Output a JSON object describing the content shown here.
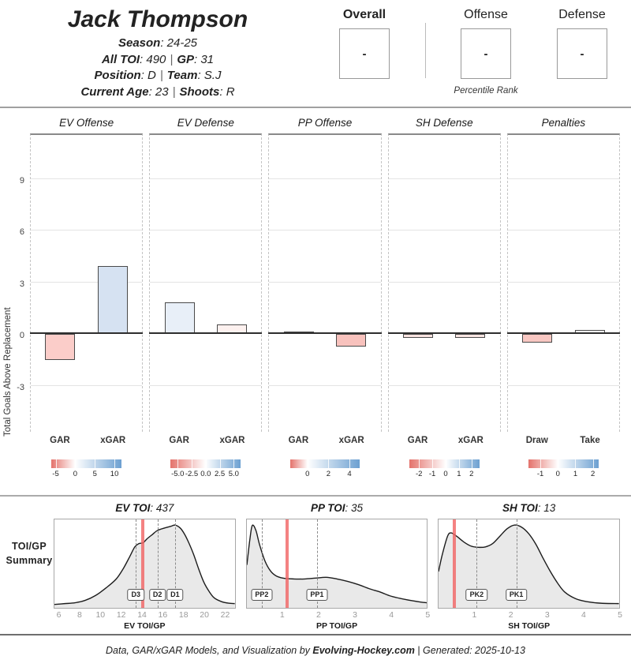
{
  "header": {
    "name": "Jack Thompson",
    "separator": "|",
    "season_label": "Season",
    "season_value": ": 24-25",
    "toi_label": "All TOI",
    "toi_value": ": 490",
    "gp_label": "GP",
    "gp_value": ": 31",
    "position_label": "Position",
    "position_value": ": D",
    "team_label": "Team",
    "team_value": ": S.J",
    "age_label": "Current Age",
    "age_value": ": 23",
    "shoots_label": "Shoots",
    "shoots_value": ": R"
  },
  "percentiles": {
    "overall": {
      "label": "Overall",
      "value": "-"
    },
    "offense": {
      "label": "Offense",
      "value": "-"
    },
    "defense": {
      "label": "Defense",
      "value": "-"
    },
    "caption": "Percentile Rank"
  },
  "chart_data": {
    "type": "bar",
    "ylabel": "Total Goals Above Replacement",
    "yticks": [
      9,
      6,
      3,
      0,
      -3
    ],
    "ylim": [
      -5.8,
      11.5
    ],
    "grid": "horizontal",
    "gradient": {
      "negative": "#e4736c",
      "positive": "#6ca0d1"
    },
    "panels": [
      {
        "title": "EV Offense",
        "categories": [
          "GAR",
          "xGAR"
        ],
        "values": [
          -1.5,
          3.9
        ],
        "bar_colors": [
          "#fbcdc9",
          "#d6e2f2"
        ],
        "scale": {
          "white_pos": 34,
          "ticks": [
            {
              "label": "-5",
              "pos": 6
            },
            {
              "label": "0",
              "pos": 34
            },
            {
              "label": "5",
              "pos": 62
            },
            {
              "label": "10",
              "pos": 90
            }
          ]
        }
      },
      {
        "title": "EV Defense",
        "categories": [
          "GAR",
          "xGAR"
        ],
        "values": [
          1.8,
          0.5
        ],
        "bar_colors": [
          "#e8eff8",
          "#fdf1ef"
        ],
        "scale": {
          "white_pos": 50,
          "ticks": [
            {
              "label": "-5.0",
              "pos": 10
            },
            {
              "label": "-2.5",
              "pos": 30
            },
            {
              "label": "0.0",
              "pos": 50
            },
            {
              "label": "2.5",
              "pos": 70
            },
            {
              "label": "5.0",
              "pos": 90
            }
          ]
        }
      },
      {
        "title": "PP Offense",
        "categories": [
          "GAR",
          "xGAR"
        ],
        "values": [
          0.1,
          -0.7
        ],
        "bar_colors": [
          "#fdfdfe",
          "#f8c2bd"
        ],
        "scale": {
          "white_pos": 25,
          "ticks": [
            {
              "label": "0",
              "pos": 25
            },
            {
              "label": "2",
              "pos": 55
            },
            {
              "label": "4",
              "pos": 85
            }
          ]
        }
      },
      {
        "title": "SH Defense",
        "categories": [
          "GAR",
          "xGAR"
        ],
        "values": [
          -0.2,
          -0.2
        ],
        "bar_colors": [
          "#fae3e0",
          "#fae5e2"
        ],
        "scale": {
          "white_pos": 52,
          "ticks": [
            {
              "label": "-2",
              "pos": 14
            },
            {
              "label": "-1",
              "pos": 33
            },
            {
              "label": "0",
              "pos": 52
            },
            {
              "label": "1",
              "pos": 71
            },
            {
              "label": "2",
              "pos": 89
            }
          ]
        }
      },
      {
        "title": "Penalties",
        "categories": [
          "Draw",
          "Take"
        ],
        "values": [
          -0.5,
          0.2
        ],
        "bar_colors": [
          "#f8c7c2",
          "#ffffff"
        ],
        "scale": {
          "white_pos": 42,
          "ticks": [
            {
              "label": "-1",
              "pos": 17
            },
            {
              "label": "0",
              "pos": 42
            },
            {
              "label": "1",
              "pos": 67
            },
            {
              "label": "2",
              "pos": 92
            }
          ]
        }
      }
    ]
  },
  "toi_summary": {
    "panel_label_line1": "TOI/GP",
    "panel_label_line2": "Summary",
    "player_line_color": "rgba(241,103,103,0.82)",
    "plots": [
      {
        "title_label": "EV TOI",
        "title_value": ": 437",
        "xlabel": "EV TOI/GP",
        "xdomain": [
          5.5,
          23
        ],
        "xticks": [
          6,
          8,
          10,
          12,
          14,
          16,
          18,
          20,
          22
        ],
        "player_value": 14.1,
        "markers": [
          {
            "label": "D3",
            "x": 13.4
          },
          {
            "label": "D2",
            "x": 15.5
          },
          {
            "label": "D1",
            "x": 17.2
          }
        ],
        "curve": [
          [
            5.5,
            0.02
          ],
          [
            6.5,
            0.03
          ],
          [
            7.5,
            0.04
          ],
          [
            8.5,
            0.07
          ],
          [
            9.5,
            0.13
          ],
          [
            10.5,
            0.22
          ],
          [
            11.5,
            0.33
          ],
          [
            12.2,
            0.46
          ],
          [
            12.8,
            0.6
          ],
          [
            13.3,
            0.72
          ],
          [
            13.7,
            0.76
          ],
          [
            14.1,
            0.77
          ],
          [
            14.5,
            0.82
          ],
          [
            15,
            0.87
          ],
          [
            15.5,
            0.92
          ],
          [
            16.2,
            0.95
          ],
          [
            16.8,
            0.97
          ],
          [
            17.2,
            0.985
          ],
          [
            17.7,
            0.95
          ],
          [
            18.1,
            0.88
          ],
          [
            18.5,
            0.78
          ],
          [
            19,
            0.63
          ],
          [
            19.5,
            0.45
          ],
          [
            20,
            0.29
          ],
          [
            20.5,
            0.18
          ],
          [
            21,
            0.1
          ],
          [
            21.7,
            0.055
          ],
          [
            22.4,
            0.035
          ],
          [
            23,
            0.03
          ]
        ]
      },
      {
        "title_label": "PP TOI",
        "title_value": ": 35",
        "xlabel": "PP TOI/GP",
        "xdomain": [
          0,
          5
        ],
        "xticks": [
          1,
          2,
          3,
          4,
          5
        ],
        "player_value": 1.13,
        "markers": [
          {
            "label": "PP2",
            "x": 0.42
          },
          {
            "label": "PP1",
            "x": 1.95
          }
        ],
        "curve": [
          [
            0,
            0.5
          ],
          [
            0.08,
            0.8
          ],
          [
            0.15,
            0.98
          ],
          [
            0.25,
            0.92
          ],
          [
            0.35,
            0.75
          ],
          [
            0.5,
            0.55
          ],
          [
            0.65,
            0.43
          ],
          [
            0.8,
            0.37
          ],
          [
            1,
            0.34
          ],
          [
            1.3,
            0.33
          ],
          [
            1.6,
            0.33
          ],
          [
            1.9,
            0.34
          ],
          [
            2.2,
            0.35
          ],
          [
            2.5,
            0.33
          ],
          [
            2.8,
            0.3
          ],
          [
            3.1,
            0.26
          ],
          [
            3.4,
            0.21
          ],
          [
            3.7,
            0.17
          ],
          [
            4,
            0.12
          ],
          [
            4.4,
            0.08
          ],
          [
            4.8,
            0.05
          ],
          [
            5,
            0.04
          ]
        ]
      },
      {
        "title_label": "SH TOI",
        "title_value": ": 13",
        "xlabel": "SH TOI/GP",
        "xdomain": [
          0,
          5
        ],
        "xticks": [
          1,
          2,
          3,
          4,
          5
        ],
        "player_value": 0.42,
        "markers": [
          {
            "label": "PK2",
            "x": 1.05
          },
          {
            "label": "PK1",
            "x": 2.15
          }
        ],
        "curve": [
          [
            0,
            0.42
          ],
          [
            0.1,
            0.62
          ],
          [
            0.25,
            0.85
          ],
          [
            0.35,
            0.89
          ],
          [
            0.5,
            0.85
          ],
          [
            0.7,
            0.78
          ],
          [
            0.9,
            0.73
          ],
          [
            1.1,
            0.715
          ],
          [
            1.3,
            0.72
          ],
          [
            1.5,
            0.76
          ],
          [
            1.7,
            0.85
          ],
          [
            1.9,
            0.94
          ],
          [
            2.1,
            0.985
          ],
          [
            2.3,
            0.96
          ],
          [
            2.5,
            0.88
          ],
          [
            2.7,
            0.75
          ],
          [
            2.9,
            0.58
          ],
          [
            3.1,
            0.42
          ],
          [
            3.3,
            0.28
          ],
          [
            3.5,
            0.17
          ],
          [
            3.8,
            0.09
          ],
          [
            4.1,
            0.055
          ],
          [
            4.5,
            0.035
          ],
          [
            5,
            0.03
          ]
        ]
      }
    ]
  },
  "footer": {
    "prefix": "Data, GAR/xGAR Models, and Visualization by ",
    "brand": "Evolving-Hockey.com",
    "suffix": " | Generated: 2025-10-13"
  }
}
